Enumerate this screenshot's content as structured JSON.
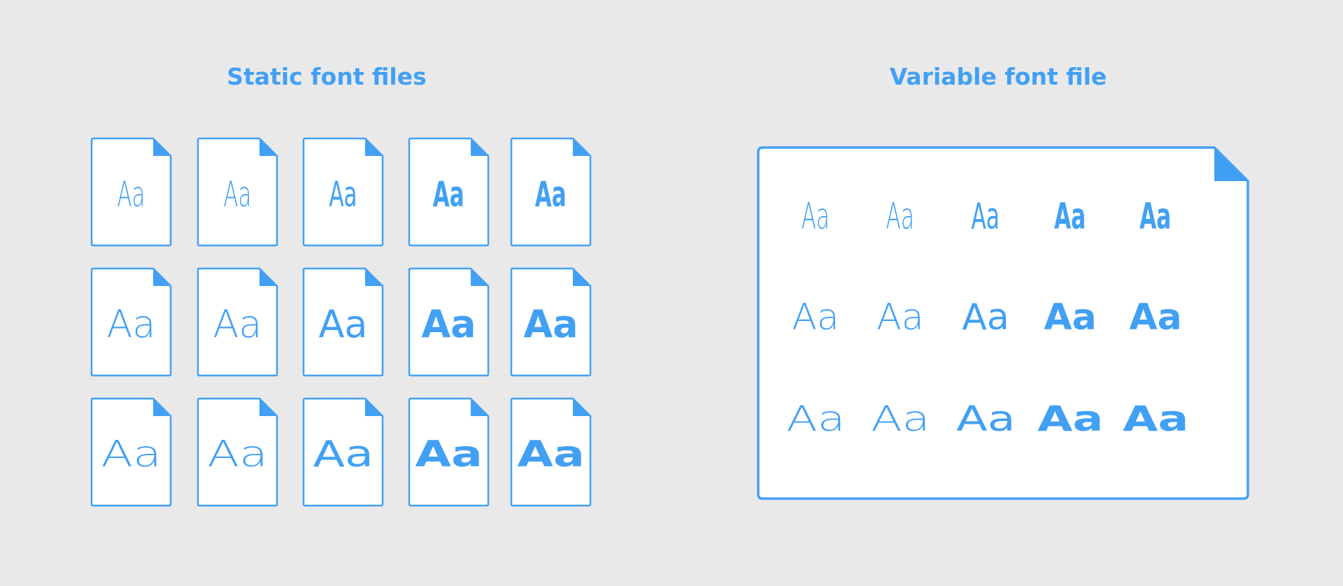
{
  "titles": {
    "static": "Static font files",
    "variable": "Variable font file"
  },
  "glyph_text": "Aa",
  "accent_color": "#42a0f4",
  "width_styles": [
    "condensed",
    "normal",
    "wide"
  ],
  "weight_steps": [
    200,
    300,
    500,
    700,
    900
  ]
}
